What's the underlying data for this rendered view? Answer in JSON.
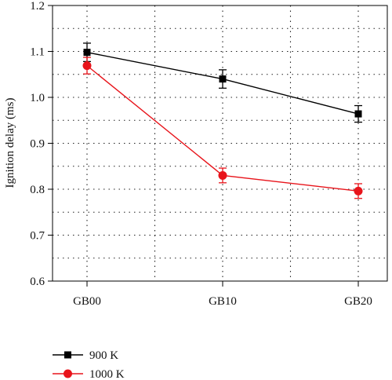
{
  "chart_data": {
    "type": "line",
    "categories": [
      "GB00",
      "GB10",
      "GB20"
    ],
    "ylabel": "Ignition delay (ms)",
    "xlabel": "",
    "ylim": [
      0.6,
      1.2
    ],
    "yticks": [
      "0.6",
      "0.7",
      "0.8",
      "0.9",
      "1.0",
      "1.1",
      "1.2"
    ],
    "grid": true,
    "legend_position": "bottom-left",
    "series": [
      {
        "name": "900 K",
        "color": "#000000",
        "marker": "square",
        "values": [
          1.098,
          1.04,
          0.964
        ],
        "errors": [
          0.02,
          0.02,
          0.018
        ]
      },
      {
        "name": "1000 K",
        "color": "#e8141b",
        "marker": "circle",
        "values": [
          1.069,
          0.83,
          0.796
        ],
        "errors": [
          0.018,
          0.016,
          0.016
        ]
      }
    ]
  }
}
